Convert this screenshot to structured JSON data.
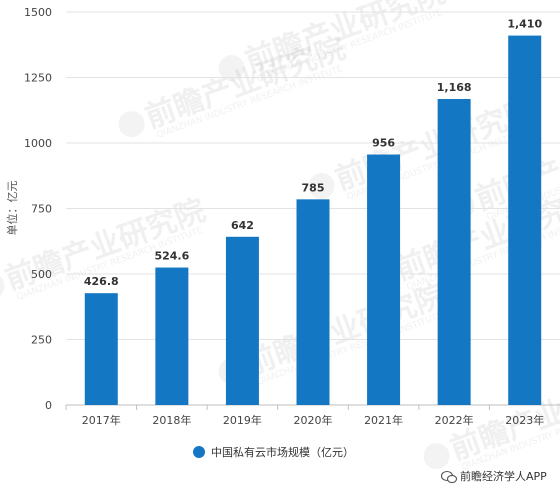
{
  "chart_data": {
    "type": "bar",
    "categories": [
      "2017年",
      "2018年",
      "2019年",
      "2020年",
      "2021年",
      "2022年",
      "2023年"
    ],
    "series": [
      {
        "name": "中国私有云市场规模（亿元）",
        "color": "#1477c4",
        "values": [
          426.8,
          524.6,
          642,
          785,
          956,
          1168,
          1410
        ],
        "labels": [
          "426.8",
          "524.6",
          "642",
          "785",
          "956",
          "1,168",
          "1,410"
        ]
      }
    ],
    "ylabel": "单位：亿元",
    "xlabel": "",
    "ylim": [
      0,
      1500
    ],
    "yticks": [
      0,
      250,
      500,
      750,
      1000,
      1250,
      1500
    ],
    "grid": true,
    "legend_position": "bottom"
  },
  "watermark": {
    "text": "前瞻产业研究院",
    "sub": "QIANZHAN INDUSTRY RESEARCH INSTITUTE",
    "icon": "qianzhan-logo-icon"
  },
  "footer": {
    "icon": "wechat-icon",
    "text": "前瞻经济学人APP"
  }
}
